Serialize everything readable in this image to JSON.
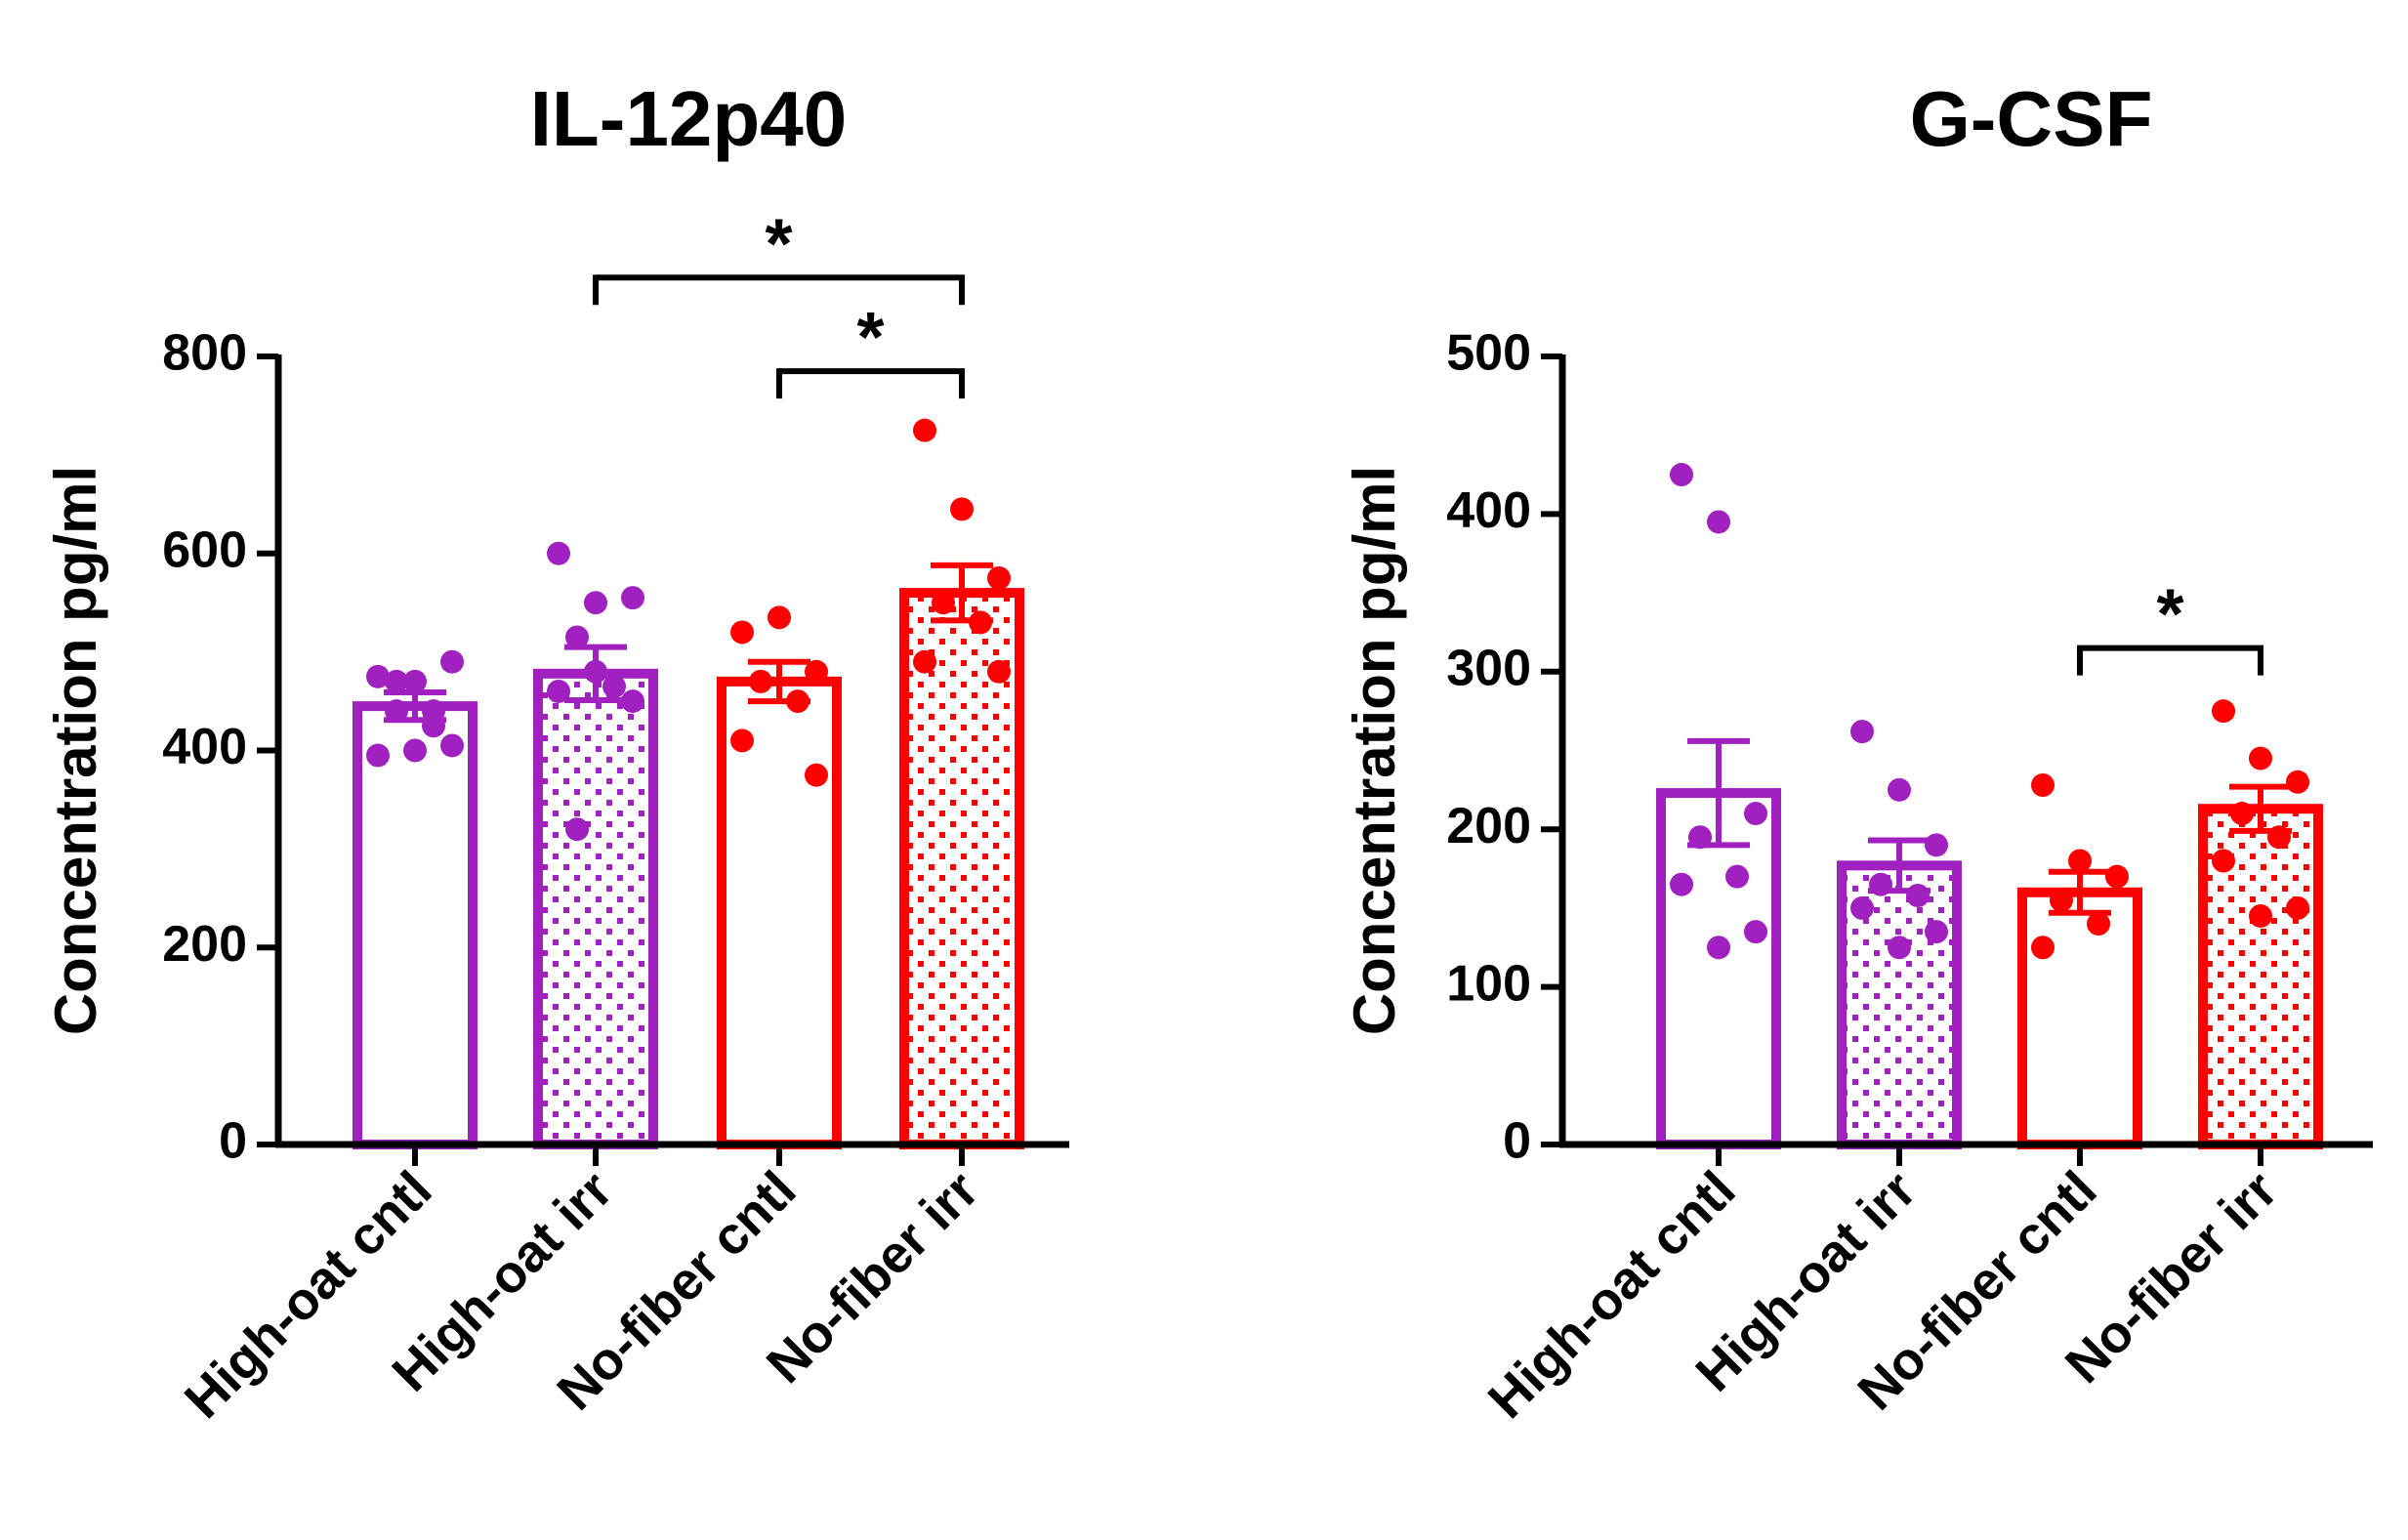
{
  "chart_data": [
    {
      "type": "bar",
      "title": "IL-12p40",
      "xlabel": "",
      "ylabel": "Concentration pg/ml",
      "ylim": [
        0,
        800
      ],
      "yticks": [
        0,
        200,
        400,
        600,
        800
      ],
      "grid": false,
      "error_bars": "SEM",
      "categories": [
        "High-oat cntl",
        "High-oat irr",
        "No-fiber cntl",
        "No-fiber irr"
      ],
      "colors": [
        "#a020c0",
        "#a020c0",
        "#ff0000",
        "#ff0000"
      ],
      "patterns": [
        "open",
        "dotted",
        "open",
        "dotted"
      ],
      "values": [
        445,
        478,
        470,
        560
      ],
      "errors": [
        14,
        27,
        20,
        28
      ],
      "points": [
        [
          475,
          470,
          490,
          470,
          440,
          395,
          405,
          400,
          440,
          425
        ],
        [
          600,
          550,
          555,
          515,
          465,
          460,
          450,
          480,
          320
        ],
        [
          520,
          535,
          480,
          470,
          450,
          410,
          375
        ],
        [
          725,
          645,
          575,
          550,
          530,
          490,
          480
        ]
      ],
      "significance": [
        {
          "from": 1,
          "to": 3,
          "label": "*",
          "level": 880
        },
        {
          "from": 2,
          "to": 3,
          "label": "*",
          "level": 785
        }
      ]
    },
    {
      "type": "bar",
      "title": "G-CSF",
      "xlabel": "",
      "ylabel": "Concentration pg/ml",
      "ylim": [
        0,
        500
      ],
      "yticks": [
        0,
        100,
        200,
        300,
        400,
        500
      ],
      "grid": false,
      "error_bars": "SEM",
      "categories": [
        "High-oat cntl",
        "High-oat irr",
        "No-fiber cntl",
        "No-fiber irr"
      ],
      "colors": [
        "#a020c0",
        "#a020c0",
        "#ff0000",
        "#ff0000"
      ],
      "patterns": [
        "open",
        "dotted",
        "open",
        "dotted"
      ],
      "values": [
        223,
        177,
        160,
        213
      ],
      "errors": [
        33,
        16,
        13,
        14
      ],
      "points": [
        [
          425,
          395,
          210,
          195,
          170,
          165,
          135,
          125
        ],
        [
          262,
          225,
          190,
          165,
          158,
          150,
          135,
          125
        ],
        [
          228,
          180,
          170,
          155,
          140,
          125
        ],
        [
          275,
          245,
          230,
          210,
          195,
          180,
          150,
          145
        ]
      ],
      "significance": [
        {
          "from": 2,
          "to": 3,
          "label": "*",
          "level": 315
        }
      ]
    }
  ]
}
